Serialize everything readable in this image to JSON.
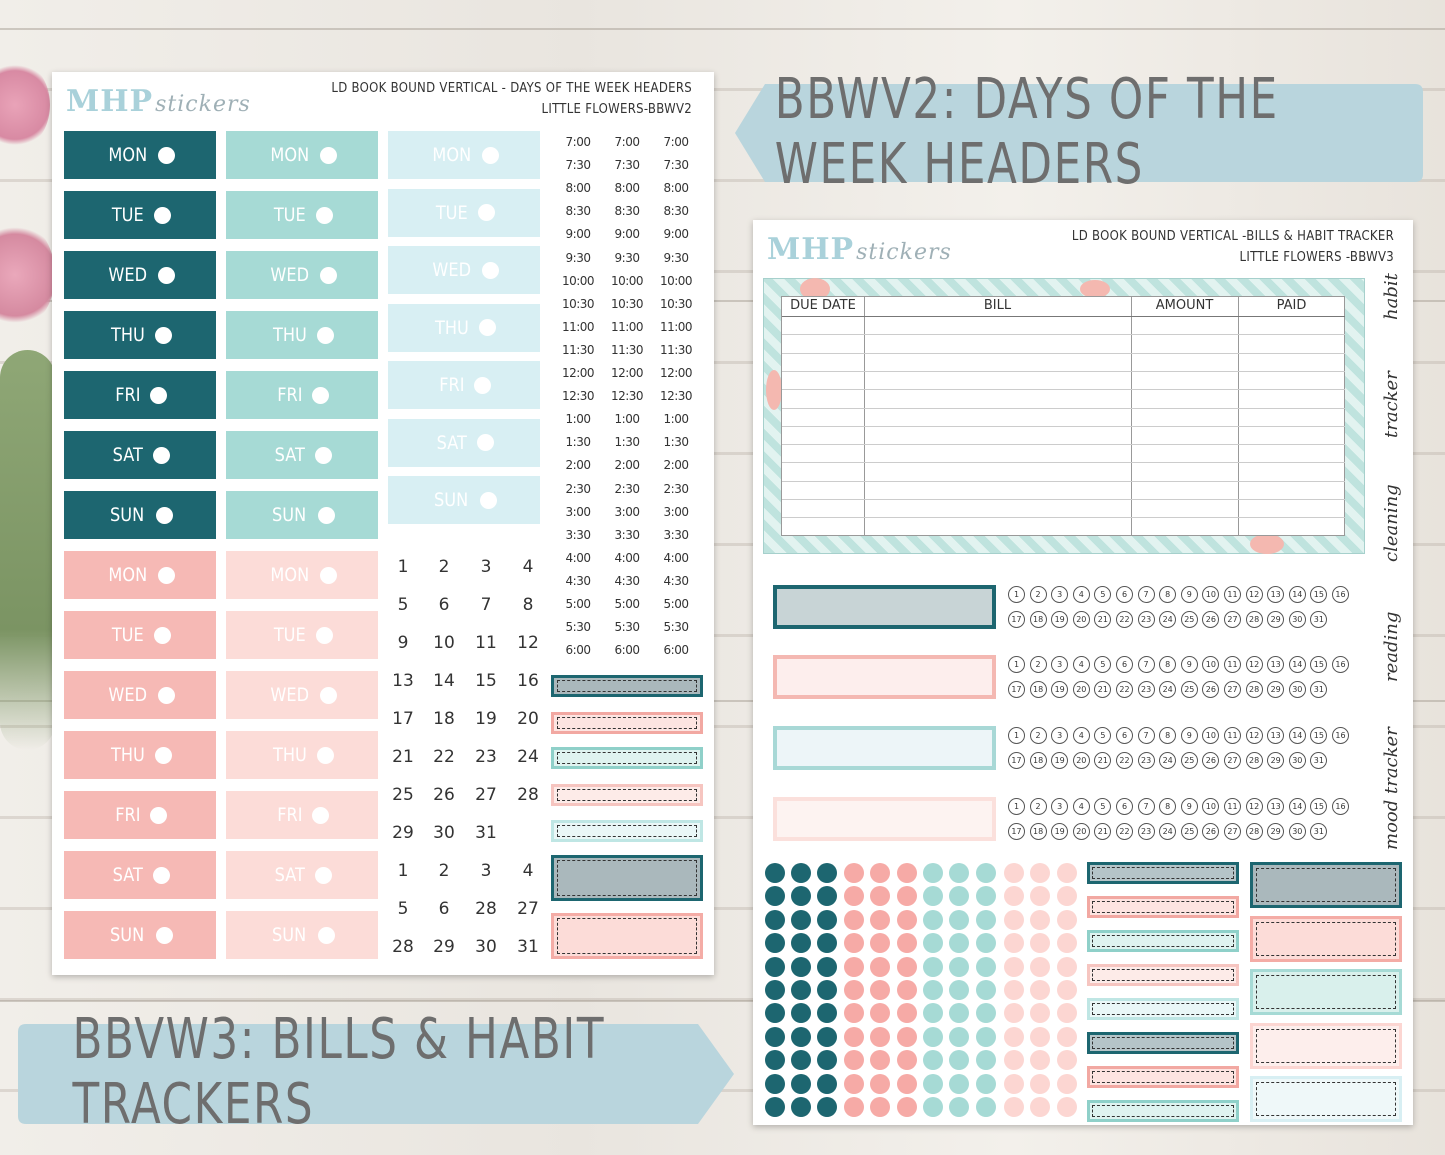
{
  "tags": {
    "top": "BBWV2: DAYS OF THE WEEK HEADERS",
    "bottom": "BBVW3: BILLS & HABIT TRACKERS"
  },
  "sheet1": {
    "logo": "MHP",
    "logo_script": "stickers",
    "header_line1": "LD BOOK BOUND VERTICAL - DAYS OF THE WEEK HEADERS",
    "header_line2": "LITTLE FLOWERS-BBWV2",
    "days": [
      "MON",
      "TUE",
      "WED",
      "THU",
      "FRI",
      "SAT",
      "SUN"
    ],
    "times": [
      "7:00",
      "7:30",
      "8:00",
      "8:30",
      "9:00",
      "9:30",
      "10:00",
      "10:30",
      "11:00",
      "11:30",
      "12:00",
      "12:30",
      "1:00",
      "1:30",
      "2:00",
      "2:30",
      "3:00",
      "3:30",
      "4:00",
      "4:30",
      "5:00",
      "5:30",
      "6:00"
    ],
    "dates": [
      "1",
      "2",
      "3",
      "4",
      "5",
      "6",
      "7",
      "8",
      "9",
      "10",
      "11",
      "12",
      "13",
      "14",
      "15",
      "16",
      "17",
      "18",
      "19",
      "20",
      "21",
      "22",
      "23",
      "24",
      "25",
      "26",
      "27",
      "28",
      "29",
      "30",
      "31"
    ],
    "extra_dates": [
      "1",
      "2",
      "3",
      "4",
      "5",
      "6",
      "28",
      "27",
      "28",
      "29",
      "30",
      "31"
    ]
  },
  "sheet2": {
    "logo": "MHP",
    "logo_script": "stickers",
    "header_line1": "LD BOOK BOUND VERTICAL -BILLS & HABIT TRACKER",
    "header_line2": "LITTLE FLOWERS -BBWV3",
    "bill_columns": [
      "DUE DATE",
      "BILL",
      "AMOUNT",
      "PAID"
    ],
    "side_labels": [
      "habit",
      "tracker",
      "cleaning",
      "reading",
      "mood tracker"
    ]
  },
  "colors": {
    "teal_dark": "#1d6670",
    "teal_mid": "#a6dad5",
    "teal_light": "#d8eff3",
    "pink_mid": "#f6b9b5",
    "pink_light": "#fcdcd8",
    "tag_blue": "#b7d3dc",
    "gray_box": "#aab8bc"
  }
}
